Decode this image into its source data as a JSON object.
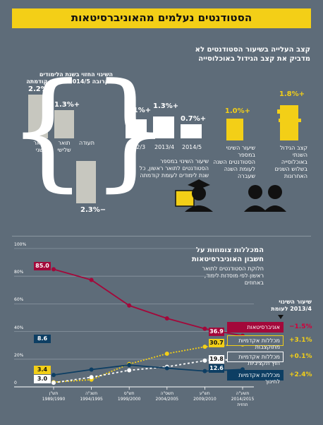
{
  "title": "הסטודנטים נעלמים מהאוניברסיטאות",
  "top_panel": {
    "heading_l1": "קצב העלייה בשיעור הסטודנטים לא",
    "heading_l2": "מדביק את קצב הגידול באוכלוסייה",
    "pop_growth": {
      "value": "+1.8%",
      "label_l1": "קצב הגידול",
      "label_l2": "השנתי",
      "label_l3": "באוכלוסייה",
      "label_l4": "בשלוש השנים",
      "label_l5": "האחרונות"
    },
    "student_growth": {
      "value": "+1.0%",
      "label_l1": "שיעור השינוי",
      "label_l2": "במספר",
      "label_l3": "הסטודנטים השנה",
      "label_l4": "לעומת השנה",
      "label_l5": "שעברה"
    },
    "firstdeg": {
      "years": [
        "2014/5",
        "2013/4",
        "2012/3"
      ],
      "values": [
        "+0.7%",
        "+1.3%",
        "+1.1%"
      ],
      "caption_l1": "שיעור השינוי במספר",
      "caption_l2": "הסטודנטים לתואר ראשון, כל",
      "caption_l3": "שנת לימודים לעומת קודמתה"
    },
    "degrees": {
      "caption_l1": "השינוי החזוי בשנת הלימודים",
      "caption_l2": "הקרובה 2014/5 לעומת קודמתה",
      "items": [
        {
          "label_l1": "תואר",
          "label_l2": "שני",
          "value": "+2.2%"
        },
        {
          "label_l1": "תואר",
          "label_l2": "שלישי",
          "value": "+1.3%"
        },
        {
          "label_l1": "תעודה",
          "label_l2": "",
          "value": "−2.3%"
        }
      ]
    }
  },
  "bottom_panel": {
    "heading_l1": "המכללות צומחות על",
    "heading_l2": "חשבון האוניברסיטאות",
    "sub_l1": "חלוקת הסטודנטים לתואר",
    "sub_l2": "ראשון לפי מוסדות לימוד,",
    "sub_l3": "באחוזים",
    "change_header_l1": "שיעור השינוי",
    "change_header_l2": "2013/4 לעומת"
  },
  "colors": {
    "bg": "#5e6c79",
    "yellow": "#f3cf17",
    "red": "#a3083a",
    "navy": "#0d3e63",
    "white": "#ffffff"
  },
  "chart_data": {
    "type": "line",
    "x": [
      "1989/1990",
      "1994/1995",
      "1999/2000",
      "2004/2005",
      "2009/2010",
      "2014/2015"
    ],
    "x_labels_l1": [
      "תש\"ן",
      "תשנ\"ה",
      "תש\"ס",
      "תשס\"ה",
      "תש\"ע",
      "תשע\"ה"
    ],
    "x_labels_l2": [
      "1989/1990",
      "1994/1995",
      "1999/2000",
      "2004/2005",
      "2009/2010",
      "2014/2015"
    ],
    "x_labels_l3": [
      "",
      "",
      "",
      "",
      "",
      "תחזית"
    ],
    "ylim": [
      0,
      100
    ],
    "yticks": [
      0,
      20,
      40,
      60,
      80,
      100
    ],
    "ytick_labels": [
      "0",
      "20%",
      "40%",
      "60%",
      "80%",
      "100%"
    ],
    "grid": true,
    "series": [
      {
        "name_l1": "אוניברסיטאות",
        "name_l2": "",
        "color": "#a3083a",
        "values": [
          85.0,
          77.3,
          58.8,
          49.5,
          42.0,
          36.9
        ],
        "first_label": "85.0",
        "last_label": "36.9",
        "change": "−1.5%"
      },
      {
        "name_l1": "מכללות אקדמיות",
        "name_l2": "מתוקצבות",
        "color": "#f3cf17",
        "values": [
          3.4,
          5.2,
          16.5,
          24.0,
          29.0,
          30.7
        ],
        "first_label": "3.4",
        "last_label": "30.7",
        "change": "+3.1%"
      },
      {
        "name_l1": "מכללות אקדמיות",
        "name_l2": "חוץ־תקציביות",
        "color": "#ffffff",
        "values": [
          3.0,
          7.0,
          12.0,
          14.5,
          19.0,
          19.8
        ],
        "first_label": "3.0",
        "last_label": "19.8",
        "change": "+0.1%"
      },
      {
        "name_l1": "מכללות אקדמיות",
        "name_l2": "לחינוך",
        "color": "#0d3e63",
        "values": [
          8.6,
          12.5,
          15.8,
          13.5,
          11.4,
          12.6
        ],
        "first_label": "8.6",
        "last_label": "12.6",
        "change": "+2.4%"
      }
    ]
  }
}
